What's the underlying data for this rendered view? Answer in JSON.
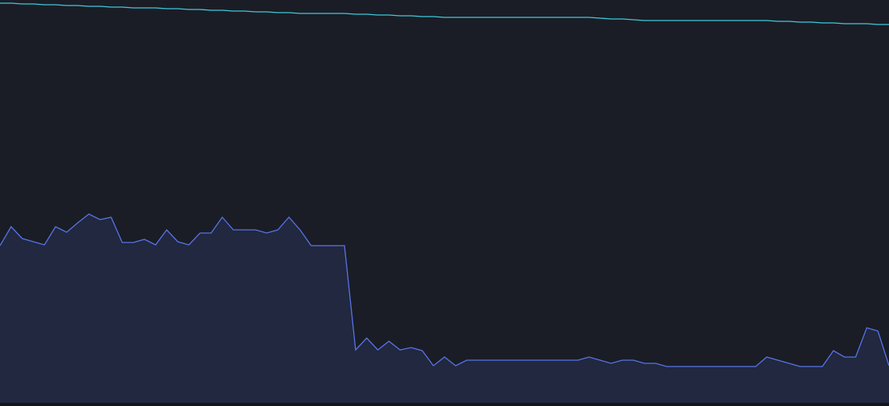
{
  "chart_data": {
    "type": "line",
    "ylim": [
      0,
      514
    ],
    "series": [
      {
        "color": "#40c9d9",
        "fill": false,
        "values": [
          510,
          510,
          509,
          509,
          508,
          508,
          507,
          507,
          506,
          506,
          505,
          505,
          504,
          504,
          504,
          503,
          503,
          502,
          502,
          501,
          501,
          500,
          500,
          499,
          499,
          498,
          498,
          497,
          497,
          497,
          497,
          497,
          496,
          496,
          495,
          495,
          494,
          494,
          493,
          493,
          492,
          492,
          492,
          492,
          492,
          492,
          492,
          492,
          492,
          492,
          492,
          492,
          492,
          492,
          491,
          490,
          490,
          489,
          488,
          488,
          488,
          488,
          488,
          488,
          488,
          488,
          488,
          488,
          488,
          488,
          487,
          487,
          486,
          486,
          485,
          485,
          484,
          484,
          484,
          483,
          483
        ]
      },
      {
        "color": "#5873e6",
        "fill": true,
        "values": [
          203,
          227,
          212,
          208,
          204,
          227,
          220,
          232,
          243,
          236,
          239,
          207,
          207,
          211,
          204,
          223,
          208,
          204,
          219,
          219,
          239,
          223,
          223,
          223,
          219,
          223,
          239,
          223,
          203,
          203,
          203,
          203,
          71,
          86,
          71,
          82,
          71,
          74,
          70,
          51,
          62,
          51,
          58,
          58,
          58,
          58,
          58,
          58,
          58,
          58,
          58,
          58,
          58,
          62,
          58,
          54,
          58,
          58,
          54,
          54,
          50,
          50,
          50,
          50,
          50,
          50,
          50,
          50,
          50,
          62,
          58,
          54,
          50,
          50,
          50,
          70,
          62,
          62,
          99,
          95,
          51
        ]
      }
    ]
  }
}
